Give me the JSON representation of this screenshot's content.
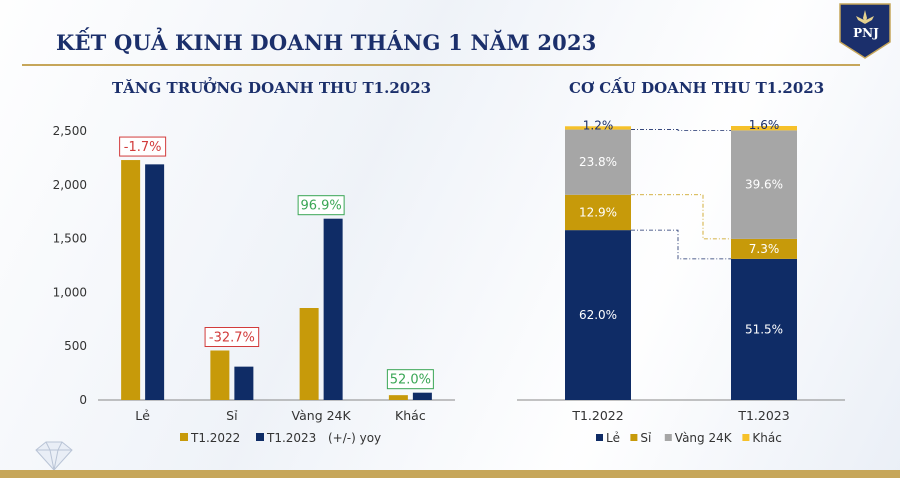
{
  "title": "KẾT QUẢ KINH DOANH THÁNG 1 NĂM 2023",
  "logo": {
    "text": "PNJ"
  },
  "colors": {
    "navy": "#0f2c66",
    "gold": "#c79a0a",
    "gray": "#a6a6a6",
    "yellow": "#f6c12a",
    "red": "#d23b3b",
    "green": "#3aa655",
    "title": "#1b2f6b"
  },
  "chart_data": [
    {
      "type": "bar",
      "title": "TĂNG TRƯỞNG DOANH THU T1.2023",
      "categories": [
        "Lẻ",
        "Sỉ",
        "Vàng 24K",
        "Khác"
      ],
      "series": [
        {
          "name": "T1.2022",
          "color": "#c79a0a",
          "values": [
            2230,
            460,
            855,
            45
          ]
        },
        {
          "name": "T1.2023",
          "color": "#0f2c66",
          "values": [
            2190,
            310,
            1685,
            68
          ]
        }
      ],
      "yoy": [
        {
          "label": "-1.7%",
          "sign": "neg"
        },
        {
          "label": "-32.7%",
          "sign": "neg"
        },
        {
          "label": "96.9%",
          "sign": "pos"
        },
        {
          "label": "52.0%",
          "sign": "pos"
        }
      ],
      "yoy_legend": "(+/-) yoy",
      "ylim": [
        0,
        2500
      ],
      "yticks": [
        0,
        500,
        1000,
        1500,
        2000,
        2500
      ],
      "ytick_labels": [
        "0",
        "500",
        "1,000",
        "1,500",
        "2,000",
        "2,500"
      ]
    },
    {
      "type": "bar",
      "stacked": true,
      "title": "CƠ CẤU DOANH THU T1.2023",
      "categories": [
        "T1.2022",
        "T1.2023"
      ],
      "series": [
        {
          "name": "Lẻ",
          "color": "#0f2c66",
          "values": [
            62.0,
            51.5
          ],
          "labels": [
            "62.0%",
            "51.5%"
          ],
          "label_color": "#ffffff"
        },
        {
          "name": "Sỉ",
          "color": "#c79a0a",
          "values": [
            12.9,
            7.3
          ],
          "labels": [
            "12.9%",
            "7.3%"
          ],
          "label_color": "#ffffff"
        },
        {
          "name": "Vàng 24K",
          "color": "#a6a6a6",
          "values": [
            23.8,
            39.6
          ],
          "labels": [
            "23.8%",
            "39.6%"
          ],
          "label_color": "#ffffff"
        },
        {
          "name": "Khác",
          "color": "#f6c12a",
          "values": [
            1.2,
            1.6
          ],
          "labels": [
            "1.2%",
            "1.6%"
          ],
          "label_color": "#1b2f6b"
        }
      ],
      "ylim": [
        0,
        100
      ]
    }
  ]
}
